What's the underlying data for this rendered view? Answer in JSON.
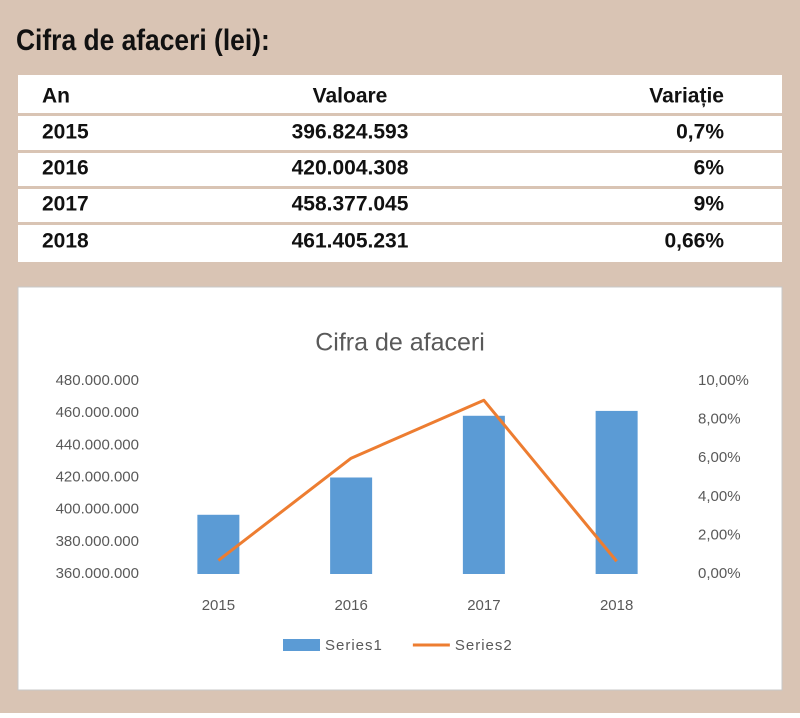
{
  "title": "Cifra de afaceri (lei):",
  "table": {
    "header": [
      "An",
      "Valoare",
      "Variație"
    ],
    "rows": [
      [
        "2015",
        "396.824.593",
        "0,7%"
      ],
      [
        "2016",
        "420.004.308",
        "6%"
      ],
      [
        "2017",
        "458.377.045",
        "9%"
      ],
      [
        "2018",
        "461.405.231",
        "0,66%"
      ]
    ]
  },
  "chart_data": {
    "type": "bar_line",
    "title": "Cifra de afaceri",
    "categories": [
      "2015",
      "2016",
      "2017",
      "2018"
    ],
    "series": [
      {
        "name": "Series1",
        "color": "#5b9bd5",
        "type": "bar",
        "values": [
          396824593,
          420004308,
          458377045,
          461405231
        ]
      },
      {
        "name": "Series2",
        "color": "#ed7d31",
        "type": "line",
        "axis": "y2",
        "values": [
          0.7,
          6,
          9,
          0.66
        ]
      }
    ],
    "ylim": [
      360000000,
      480000000
    ],
    "yticks": [
      {
        "value": 360000000,
        "label": "360.000.000"
      },
      {
        "value": 380000000,
        "label": "380.000.000"
      },
      {
        "value": 400000000,
        "label": "400.000.000"
      },
      {
        "value": 420000000,
        "label": "420.000.000"
      },
      {
        "value": 440000000,
        "label": "440.000.000"
      },
      {
        "value": 460000000,
        "label": "460.000.000"
      },
      {
        "value": 480000000,
        "label": "480.000.000"
      }
    ],
    "y2lim": [
      0,
      10
    ],
    "y2ticks": [
      {
        "value": 0,
        "label": "0,00%"
      },
      {
        "value": 2,
        "label": "2,00%"
      },
      {
        "value": 4,
        "label": "4,00%"
      },
      {
        "value": 6,
        "label": "6,00%"
      },
      {
        "value": 8,
        "label": "8,00%"
      },
      {
        "value": 10,
        "label": "10,00%"
      }
    ],
    "grid": false,
    "legend": "bottom"
  }
}
